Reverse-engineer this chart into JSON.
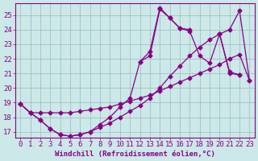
{
  "line1_x": [
    0,
    1,
    2,
    3,
    4,
    5,
    6,
    7,
    8,
    9,
    10,
    11,
    12,
    13,
    14,
    15,
    16,
    17,
    18,
    19,
    20,
    21,
    22,
    23
  ],
  "line1_y": [
    18.9,
    18.3,
    17.8,
    17.2,
    16.8,
    16.7,
    16.8,
    17.0,
    17.3,
    17.6,
    18.0,
    18.4,
    18.8,
    19.3,
    20.0,
    20.8,
    21.5,
    22.2,
    22.8,
    23.3,
    23.7,
    24.0,
    25.3,
    20.5
  ],
  "line2_x": [
    0,
    1,
    2,
    3,
    4,
    5,
    6,
    7,
    8,
    9,
    10,
    11,
    12,
    13,
    14,
    15,
    16,
    17,
    18,
    19,
    20,
    21,
    22,
    23
  ],
  "line2_y": [
    18.9,
    18.3,
    18.3,
    18.3,
    18.3,
    18.3,
    18.4,
    18.5,
    18.6,
    18.7,
    18.9,
    19.1,
    19.3,
    19.5,
    19.8,
    20.1,
    20.4,
    20.7,
    21.0,
    21.3,
    21.6,
    22.0,
    22.3,
    20.5
  ],
  "line3_x": [
    0,
    1,
    2,
    3,
    4,
    5,
    6,
    7,
    8,
    9,
    10,
    11,
    12,
    13,
    14,
    15,
    16,
    17,
    18,
    19,
    20,
    21,
    22,
    23
  ],
  "line3_y": [
    18.9,
    18.3,
    17.8,
    17.2,
    16.8,
    16.7,
    16.8,
    17.0,
    17.5,
    18.0,
    18.7,
    19.3,
    21.8,
    22.2,
    25.4,
    24.8,
    24.1,
    23.9,
    22.2,
    21.7,
    23.7,
    21.0,
    20.9,
    null
  ],
  "line4_x": [
    12,
    13,
    14,
    15,
    16,
    17,
    18,
    19,
    20,
    21,
    22
  ],
  "line4_y": [
    21.8,
    22.5,
    25.5,
    24.8,
    24.1,
    24.0,
    null,
    null,
    23.7,
    21.1,
    20.9
  ],
  "bg_color": "#cce8e8",
  "line_color": "#880088",
  "grid_color": "#99bbbb",
  "xlabel": "Windchill (Refroidissement éolien,°C)",
  "yticks": [
    17,
    18,
    19,
    20,
    21,
    22,
    23,
    24,
    25
  ],
  "xticks": [
    0,
    1,
    2,
    3,
    4,
    5,
    6,
    7,
    8,
    9,
    10,
    11,
    12,
    13,
    14,
    15,
    16,
    17,
    18,
    19,
    20,
    21,
    22,
    23
  ],
  "fontsize": 6.5,
  "marker": "D",
  "markersize": 2.5,
  "linewidth": 0.9
}
